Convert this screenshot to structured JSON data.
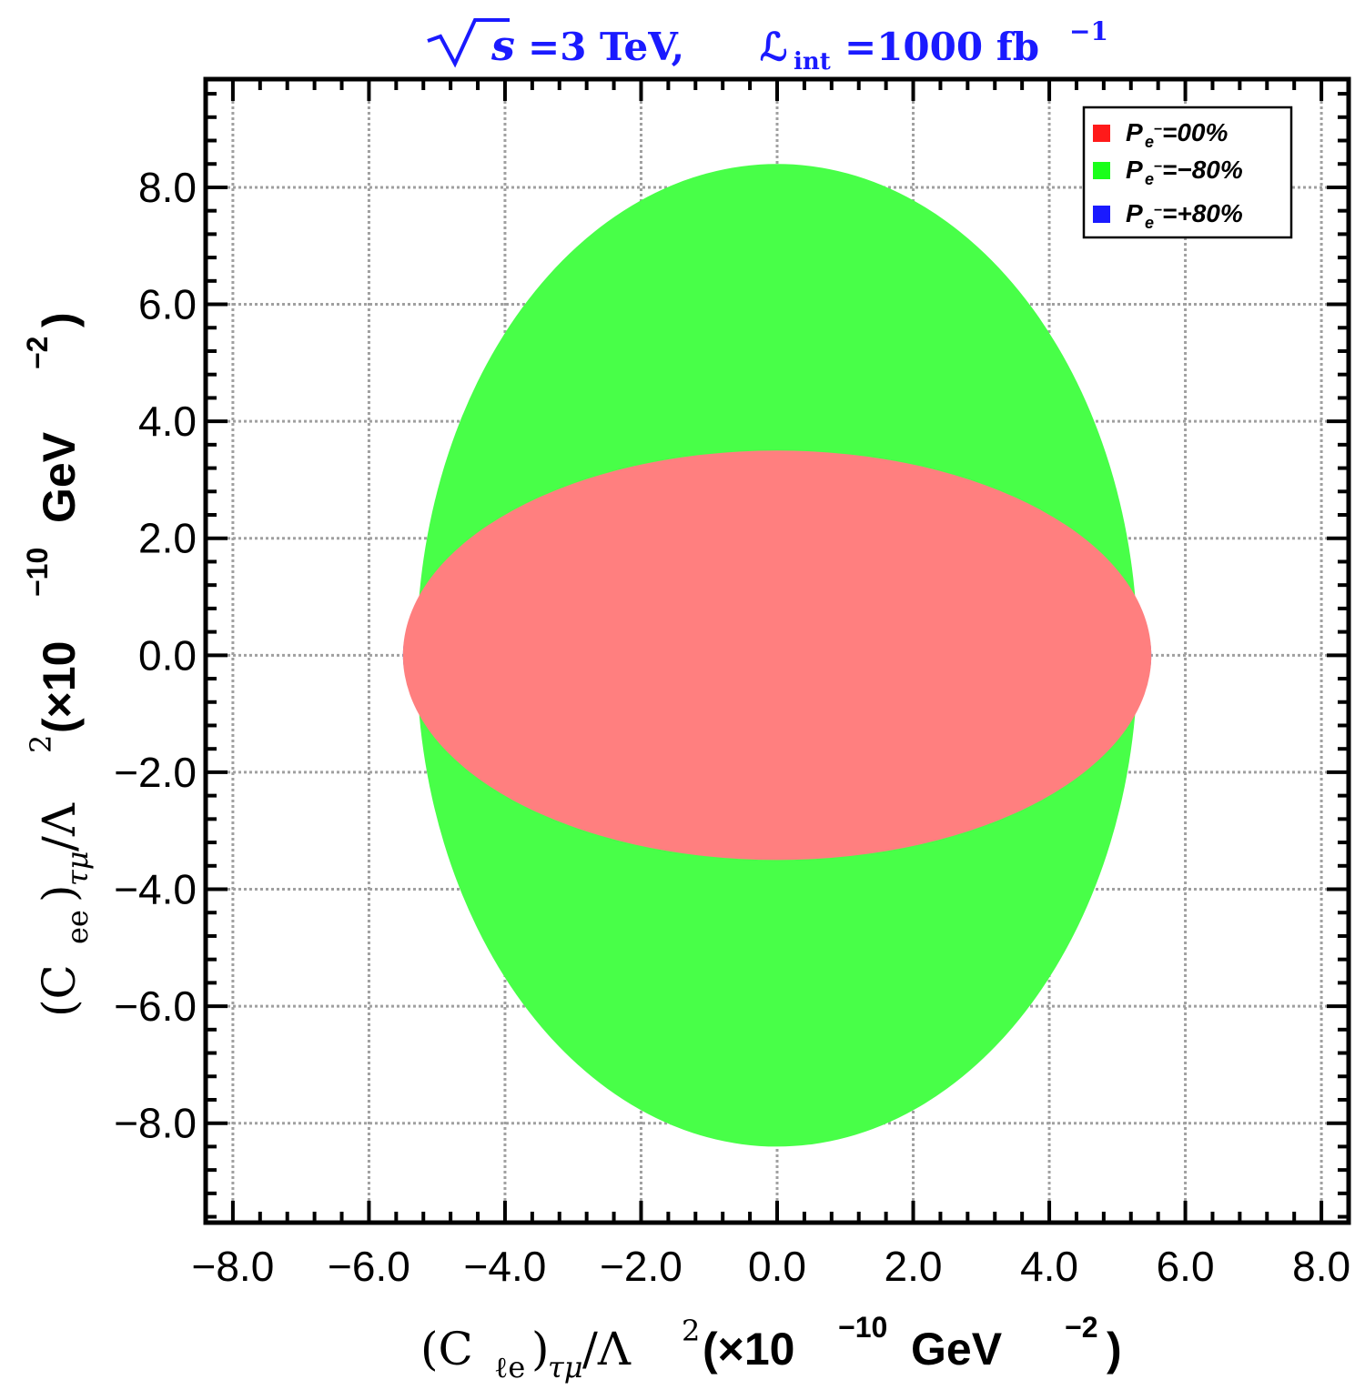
{
  "chart_data": {
    "type": "area",
    "title": {
      "sqrt_s": "s",
      "energy_text": "=3 TeV,",
      "lumi_script": "ℒ",
      "lumi_sub": "int",
      "lumi_text": "=1000 fb",
      "lumi_exp": "−1"
    },
    "xlabel": {
      "coef": "(C",
      "coef_sub": "ℓe",
      "close": ")",
      "flavour_sub": "τμ",
      "slash_lambda": "/Λ",
      "lambda_exp": "2",
      "units": "(×10",
      "units_exp": "−10",
      "units_tail": " GeV",
      "units_tail_exp": "−2",
      "units_close": ")"
    },
    "ylabel": {
      "coef": "(C",
      "coef_sub": "ee",
      "close": ")",
      "flavour_sub": "τμ",
      "slash_lambda": "/Λ",
      "lambda_exp": "2",
      "units": "(×10",
      "units_exp": "−10",
      "units_tail": " GeV",
      "units_tail_exp": "−2",
      "units_close": ")"
    },
    "xlim": [
      -8.4,
      8.4
    ],
    "ylim": [
      -9.7,
      9.85
    ],
    "xticks": [
      -8.0,
      -6.0,
      -4.0,
      -2.0,
      0.0,
      2.0,
      4.0,
      6.0,
      8.0
    ],
    "xtick_labels": [
      "−8.0",
      "−6.0",
      "−4.0",
      "−2.0",
      "0.0",
      "2.0",
      "4.0",
      "6.0",
      "8.0"
    ],
    "yticks": [
      -8.0,
      -6.0,
      -4.0,
      -2.0,
      0.0,
      2.0,
      4.0,
      6.0,
      8.0
    ],
    "ytick_labels": [
      "−8.0",
      "−6.0",
      "−4.0",
      "−2.0",
      "0.0",
      "2.0",
      "4.0",
      "6.0",
      "8.0"
    ],
    "grid": true,
    "legend_position": "top-right",
    "series": [
      {
        "name": "green",
        "legend_label": "=−80%",
        "color": "#48ff48",
        "semi_axis_x": 5.3,
        "semi_axis_y": 8.4
      },
      {
        "name": "blue",
        "legend_label": "=+80%",
        "color": "#1f3fdc",
        "semi_axis_x": 5.5,
        "semi_axis_y": 3.0
      },
      {
        "name": "red",
        "legend_label": "=00%",
        "color": "#ff7f7f",
        "semi_axis_x": 5.5,
        "semi_axis_y": 3.5
      }
    ],
    "legend_symbol": "P",
    "legend_symbol_sub": "e",
    "legend_symbol_sup": "−",
    "legend_order": [
      "red",
      "green",
      "blue"
    ],
    "legend_swatch_colors": {
      "red": "#ff1a1a",
      "green": "#1aff1a",
      "blue": "#1a1aff"
    }
  }
}
